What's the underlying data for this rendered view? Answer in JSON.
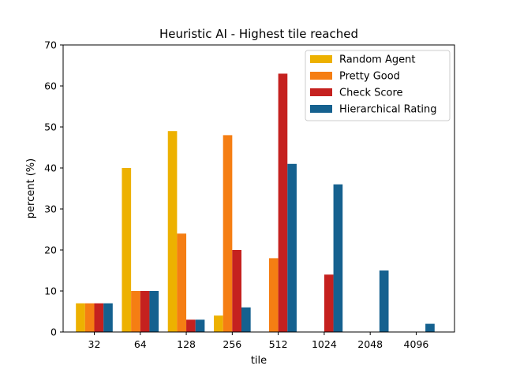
{
  "chart_data": {
    "type": "bar",
    "title": "Heuristic AI - Highest tile reached",
    "xlabel": "tile",
    "ylabel": "percent (%)",
    "ylim": [
      0,
      70
    ],
    "yticks": [
      0,
      10,
      20,
      30,
      40,
      50,
      60,
      70
    ],
    "categories": [
      "32",
      "64",
      "128",
      "256",
      "512",
      "1024",
      "2048",
      "4096"
    ],
    "legend_position": "top-right",
    "grid": false,
    "series": [
      {
        "name": "Random Agent",
        "color": "#EDB100",
        "values": [
          7,
          40,
          49,
          4,
          0,
          0,
          0,
          0
        ]
      },
      {
        "name": "Pretty Good",
        "color": "#F57E13",
        "values": [
          7,
          10,
          24,
          48,
          18,
          0,
          0,
          0
        ]
      },
      {
        "name": "Check Score",
        "color": "#C5211F",
        "values": [
          7,
          10,
          3,
          20,
          63,
          14,
          0,
          0
        ]
      },
      {
        "name": "Hierarchical Rating",
        "color": "#15618F",
        "values": [
          7,
          10,
          3,
          6,
          41,
          36,
          15,
          2
        ]
      }
    ]
  }
}
